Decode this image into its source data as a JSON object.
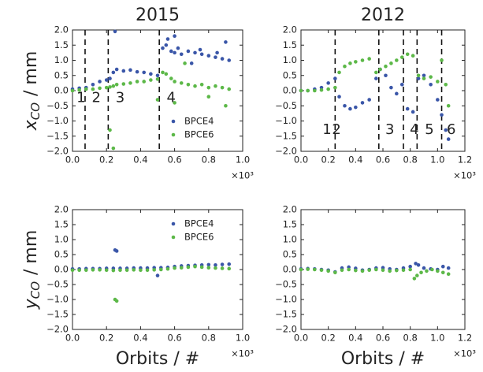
{
  "chart_data": [
    {
      "type": "scatter",
      "title": "2015",
      "ylabel": {
        "symbol": "x",
        "subscript": "CO",
        "unit": "/ mm"
      },
      "x_offset_label": "×10³",
      "xlim": [
        0,
        1.0
      ],
      "ylim": [
        -2.0,
        2.0
      ],
      "xticks": [
        {
          "value": 0,
          "label": "0.0"
        },
        {
          "value": 0.2,
          "label": "0.2"
        },
        {
          "value": 0.4,
          "label": "0.4"
        },
        {
          "value": 0.6,
          "label": "0.6"
        },
        {
          "value": 0.8,
          "label": "0.8"
        },
        {
          "value": 1.0,
          "label": "1.0"
        }
      ],
      "yticks": [
        {
          "value": -2.0,
          "label": "−2.0"
        },
        {
          "value": -1.5,
          "label": "−1.5"
        },
        {
          "value": -1.0,
          "label": "−1.0"
        },
        {
          "value": -0.5,
          "label": "−0.5"
        },
        {
          "value": 0,
          "label": "0.0"
        },
        {
          "value": 0.5,
          "label": "0.5"
        },
        {
          "value": 1.0,
          "label": "1.0"
        },
        {
          "value": 1.5,
          "label": "1.5"
        },
        {
          "value": 2.0,
          "label": "2.0"
        }
      ],
      "legend": "lower right",
      "vlines": [
        0.074,
        0.21,
        0.51
      ],
      "annotations": [
        {
          "text": "1",
          "x": 0.05,
          "y": -0.25
        },
        {
          "text": "2",
          "x": 0.14,
          "y": -0.25
        },
        {
          "text": "3",
          "x": 0.28,
          "y": -0.25
        },
        {
          "text": "4",
          "x": 0.58,
          "y": -0.25
        }
      ],
      "series": [
        {
          "name": "BPCE4",
          "color": "#3a56a8",
          "x": [
            0,
            0.04,
            0.08,
            0.12,
            0.16,
            0.2,
            0.22,
            0.24,
            0.26,
            0.3,
            0.34,
            0.38,
            0.42,
            0.46,
            0.5,
            0.53,
            0.55,
            0.58,
            0.6,
            0.64,
            0.68,
            0.72,
            0.76,
            0.8,
            0.84,
            0.88,
            0.92,
            0.25,
            0.6,
            0.9,
            0.7,
            0.56,
            0.62,
            0.75,
            0.85
          ],
          "values": [
            0.05,
            0.08,
            0.1,
            0.2,
            0.3,
            0.35,
            0.4,
            0.6,
            0.7,
            0.65,
            0.68,
            0.62,
            0.6,
            0.55,
            0.5,
            1.4,
            1.5,
            1.3,
            1.25,
            1.2,
            1.3,
            1.25,
            1.2,
            1.15,
            1.1,
            1.05,
            1.0,
            1.95,
            1.8,
            1.6,
            0.9,
            1.7,
            1.4,
            1.35,
            1.25
          ]
        },
        {
          "name": "BPCE6",
          "color": "#5cb848",
          "x": [
            0,
            0.04,
            0.08,
            0.12,
            0.16,
            0.2,
            0.22,
            0.24,
            0.26,
            0.3,
            0.34,
            0.38,
            0.42,
            0.46,
            0.5,
            0.53,
            0.55,
            0.58,
            0.6,
            0.64,
            0.68,
            0.72,
            0.76,
            0.8,
            0.84,
            0.88,
            0.92,
            0.24,
            0.22,
            0.5,
            0.6,
            0.9,
            0.66,
            0.8
          ],
          "values": [
            0.0,
            0.02,
            0.05,
            0.05,
            0.08,
            0.1,
            0.12,
            0.15,
            0.2,
            0.22,
            0.25,
            0.3,
            0.3,
            0.35,
            0.38,
            0.6,
            0.55,
            0.4,
            0.3,
            0.25,
            0.2,
            0.15,
            0.2,
            0.1,
            0.15,
            0.1,
            0.05,
            -1.9,
            -1.3,
            -0.3,
            -0.4,
            -0.5,
            0.9,
            -0.2
          ]
        }
      ]
    },
    {
      "type": "scatter",
      "title": "2012",
      "x_offset_label": "×10³",
      "xlim": [
        0,
        1.2
      ],
      "ylim": [
        -2.0,
        2.0
      ],
      "xticks": [
        {
          "value": 0,
          "label": "0.0"
        },
        {
          "value": 0.2,
          "label": "0.2"
        },
        {
          "value": 0.4,
          "label": "0.4"
        },
        {
          "value": 0.6,
          "label": "0.6"
        },
        {
          "value": 0.8,
          "label": "0.8"
        },
        {
          "value": 1.0,
          "label": "1.0"
        },
        {
          "value": 1.2,
          "label": "1.2"
        }
      ],
      "yticks": [
        {
          "value": -2.0,
          "label": "−2.0"
        },
        {
          "value": -1.5,
          "label": "−1.5"
        },
        {
          "value": -1.0,
          "label": "−1.0"
        },
        {
          "value": -0.5,
          "label": "−0.5"
        },
        {
          "value": 0,
          "label": "0.0"
        },
        {
          "value": 0.5,
          "label": "0.5"
        },
        {
          "value": 1.0,
          "label": "1.0"
        },
        {
          "value": 1.5,
          "label": "1.5"
        },
        {
          "value": 2.0,
          "label": "2.0"
        }
      ],
      "vlines": [
        0.25,
        0.57,
        0.75,
        0.85,
        1.03
      ],
      "annotations": [
        {
          "text": "1",
          "x": 0.19,
          "y": -1.3
        },
        {
          "text": "2",
          "x": 0.26,
          "y": -1.3
        },
        {
          "text": "3",
          "x": 0.65,
          "y": -1.3
        },
        {
          "text": "4",
          "x": 0.83,
          "y": -1.3
        },
        {
          "text": "5",
          "x": 0.94,
          "y": -1.3
        },
        {
          "text": "6",
          "x": 1.1,
          "y": -1.3
        }
      ],
      "series": [
        {
          "color": "#3a56a8",
          "x": [
            0,
            0.05,
            0.1,
            0.15,
            0.2,
            0.25,
            0.28,
            0.32,
            0.36,
            0.4,
            0.45,
            0.5,
            0.55,
            0.58,
            0.62,
            0.66,
            0.7,
            0.74,
            0.78,
            0.82,
            0.86,
            0.9,
            0.95,
            1.0,
            1.03,
            1.06,
            1.08
          ],
          "values": [
            0,
            0,
            0.05,
            0.1,
            0.25,
            0.4,
            -0.2,
            -0.5,
            -0.6,
            -0.55,
            -0.4,
            -0.3,
            0.4,
            0.7,
            0.5,
            0.1,
            -0.1,
            0.2,
            -0.6,
            -0.7,
            0.4,
            0.5,
            0.2,
            -0.3,
            -0.8,
            -1.3,
            -1.6
          ]
        },
        {
          "color": "#5cb848",
          "x": [
            0,
            0.05,
            0.1,
            0.15,
            0.2,
            0.25,
            0.28,
            0.32,
            0.36,
            0.4,
            0.45,
            0.5,
            0.55,
            0.58,
            0.62,
            0.66,
            0.7,
            0.74,
            0.78,
            0.82,
            0.86,
            0.9,
            0.95,
            1.0,
            1.03,
            1.06,
            1.08
          ],
          "values": [
            0,
            0,
            0,
            0.02,
            0.05,
            0.1,
            0.6,
            0.8,
            0.9,
            0.95,
            1.0,
            1.05,
            0.6,
            0.7,
            0.8,
            0.9,
            1.0,
            1.1,
            1.2,
            1.15,
            0.5,
            0.4,
            0.45,
            0.3,
            1.0,
            0.2,
            -0.5
          ]
        }
      ]
    },
    {
      "type": "scatter",
      "ylabel": {
        "symbol": "y",
        "subscript": "CO",
        "unit": "/ mm"
      },
      "xlabel": "Orbits / #",
      "x_offset_label": "×10³",
      "xlim": [
        0,
        1.0
      ],
      "ylim": [
        -2.0,
        2.0
      ],
      "xticks": [
        {
          "value": 0,
          "label": "0.0"
        },
        {
          "value": 0.2,
          "label": "0.2"
        },
        {
          "value": 0.4,
          "label": "0.4"
        },
        {
          "value": 0.6,
          "label": "0.6"
        },
        {
          "value": 0.8,
          "label": "0.8"
        },
        {
          "value": 1.0,
          "label": "1.0"
        }
      ],
      "yticks": [
        {
          "value": -2.0,
          "label": "−2.0"
        },
        {
          "value": -1.5,
          "label": "−1.5"
        },
        {
          "value": -1.0,
          "label": "−1.0"
        },
        {
          "value": -0.5,
          "label": "−0.5"
        },
        {
          "value": 0,
          "label": "0.0"
        },
        {
          "value": 0.5,
          "label": "0.5"
        },
        {
          "value": 1.0,
          "label": "1.0"
        },
        {
          "value": 1.5,
          "label": "1.5"
        },
        {
          "value": 2.0,
          "label": "2.0"
        }
      ],
      "legend": "upper right",
      "series": [
        {
          "name": "BPCE4",
          "color": "#3a56a8",
          "x": [
            0,
            0.04,
            0.08,
            0.12,
            0.16,
            0.2,
            0.24,
            0.28,
            0.32,
            0.36,
            0.4,
            0.44,
            0.48,
            0.52,
            0.56,
            0.6,
            0.64,
            0.68,
            0.72,
            0.76,
            0.8,
            0.84,
            0.88,
            0.92,
            0.25,
            0.26,
            0.5
          ],
          "values": [
            0.02,
            0.02,
            0.03,
            0.03,
            0.03,
            0.04,
            0.04,
            0.04,
            0.04,
            0.05,
            0.05,
            0.05,
            0.06,
            0.06,
            0.07,
            0.1,
            0.12,
            0.13,
            0.14,
            0.15,
            0.16,
            0.15,
            0.17,
            0.18,
            0.65,
            0.62,
            -0.2
          ]
        },
        {
          "name": "BPCE6",
          "color": "#5cb848",
          "x": [
            0,
            0.04,
            0.08,
            0.12,
            0.16,
            0.2,
            0.24,
            0.28,
            0.32,
            0.36,
            0.4,
            0.44,
            0.48,
            0.52,
            0.56,
            0.6,
            0.64,
            0.68,
            0.72,
            0.76,
            0.8,
            0.84,
            0.88,
            0.92,
            0.25,
            0.26
          ],
          "values": [
            -0.02,
            -0.02,
            -0.02,
            -0.01,
            -0.01,
            -0.02,
            -0.03,
            -0.02,
            -0.02,
            -0.01,
            -0.02,
            -0.02,
            -0.01,
            0.0,
            0.02,
            0.05,
            0.06,
            0.08,
            0.1,
            0.08,
            0.06,
            0.05,
            0.04,
            0.03,
            -1.0,
            -1.05
          ]
        }
      ]
    },
    {
      "type": "scatter",
      "xlabel": "Orbits / #",
      "x_offset_label": "×10³",
      "xlim": [
        0,
        1.2
      ],
      "ylim": [
        -2.0,
        2.0
      ],
      "xticks": [
        {
          "value": 0,
          "label": "0.0"
        },
        {
          "value": 0.2,
          "label": "0.2"
        },
        {
          "value": 0.4,
          "label": "0.4"
        },
        {
          "value": 0.6,
          "label": "0.6"
        },
        {
          "value": 0.8,
          "label": "0.8"
        },
        {
          "value": 1.0,
          "label": "1.0"
        },
        {
          "value": 1.2,
          "label": "1.2"
        }
      ],
      "yticks": [
        {
          "value": -2.0,
          "label": "−2.0"
        },
        {
          "value": -1.5,
          "label": "−1.5"
        },
        {
          "value": -1.0,
          "label": "−1.0"
        },
        {
          "value": -0.5,
          "label": "−0.5"
        },
        {
          "value": 0,
          "label": "0.0"
        },
        {
          "value": 0.5,
          "label": "0.5"
        },
        {
          "value": 1.0,
          "label": "1.0"
        },
        {
          "value": 1.5,
          "label": "1.5"
        },
        {
          "value": 2.0,
          "label": "2.0"
        }
      ],
      "series": [
        {
          "color": "#3a56a8",
          "x": [
            0,
            0.05,
            0.1,
            0.15,
            0.2,
            0.25,
            0.3,
            0.35,
            0.4,
            0.45,
            0.5,
            0.55,
            0.6,
            0.65,
            0.7,
            0.75,
            0.8,
            0.84,
            0.86,
            0.9,
            0.95,
            1.0,
            1.04,
            1.08
          ],
          "values": [
            0.02,
            0.03,
            0.02,
            0.0,
            -0.02,
            -0.08,
            0.05,
            0.08,
            0.04,
            -0.02,
            0.0,
            0.05,
            0.06,
            0.02,
            0.0,
            0.05,
            0.1,
            0.2,
            0.15,
            0.05,
            0.02,
            0.0,
            0.1,
            0.05
          ]
        },
        {
          "color": "#5cb848",
          "x": [
            0,
            0.05,
            0.1,
            0.15,
            0.2,
            0.25,
            0.3,
            0.35,
            0.4,
            0.45,
            0.5,
            0.55,
            0.6,
            0.65,
            0.7,
            0.75,
            0.8,
            0.83,
            0.85,
            0.88,
            0.92,
            0.96,
            1.0,
            1.04,
            1.08
          ],
          "values": [
            0.0,
            0.01,
            0.0,
            -0.02,
            -0.05,
            -0.1,
            -0.02,
            0.0,
            -0.03,
            -0.05,
            -0.02,
            0.0,
            -0.02,
            -0.05,
            -0.03,
            -0.02,
            0.0,
            -0.3,
            -0.2,
            -0.1,
            -0.05,
            0.0,
            -0.05,
            -0.1,
            -0.15
          ]
        }
      ]
    }
  ]
}
